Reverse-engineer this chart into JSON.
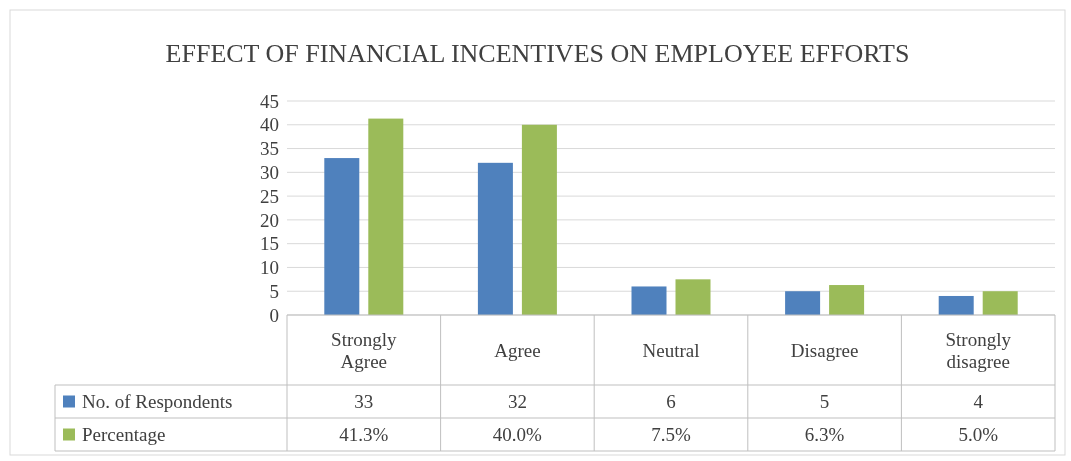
{
  "chart_data": {
    "type": "bar",
    "title": "EFFECT OF FINANCIAL INCENTIVES ON EMPLOYEE EFFORTS",
    "categories": [
      "Strongly Agree",
      "Agree",
      "Neutral",
      "Disagree",
      "Strongly disagree"
    ],
    "series": [
      {
        "name": "No. of Respondents",
        "color": "#4f81bd",
        "values": [
          33,
          32,
          6,
          5,
          4
        ],
        "value_labels": [
          "33",
          "32",
          "6",
          "5",
          "4"
        ]
      },
      {
        "name": "Percentage",
        "color": "#9bbb59",
        "values": [
          41.3,
          40.0,
          7.5,
          6.3,
          5.0
        ],
        "value_labels": [
          "41.3%",
          "40.0%",
          "7.5%",
          "6.3%",
          "5.0%"
        ]
      }
    ],
    "ylim": [
      0,
      45
    ],
    "yticks": [
      0,
      5,
      10,
      15,
      20,
      25,
      30,
      35,
      40,
      45
    ],
    "grid": "y",
    "legend": "bottom"
  }
}
